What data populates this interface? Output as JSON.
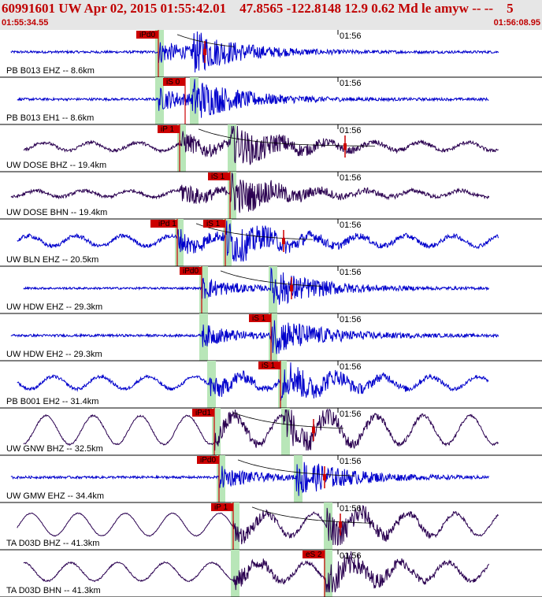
{
  "header": {
    "title": "60991601 UW Apr 02, 2015 01:55:42.01    47.8565 -122.8148 12.9 0.62 Md le amyw -- --    5",
    "start_time": "01:55:34.55",
    "end_time": "01:56:08.95"
  },
  "chart_data": {
    "type": "line",
    "title": "60991601 UW Apr 02, 2015 01:55:42.01    47.8565 -122.8148 12.9 0.62 Md le amyw -- --    5",
    "x_range": [
      "01:55:34.55",
      "01:56:08.95"
    ],
    "x_tick_label": "01:56",
    "x_tick_time": 21.45,
    "total_seconds": 34.4,
    "grid": false,
    "colors": {
      "blue": "#0000cc",
      "purple": "#2a0050",
      "pick": "#cc0000",
      "window": "#b8e6b8"
    },
    "traces": [
      {
        "label": "PB B013 EHZ -- 8.6km",
        "color": "blue",
        "picks": [
          {
            "label": "iPd0",
            "t": 10.05
          }
        ],
        "windows": [
          10.0
        ],
        "p_time": 10.05,
        "s_time": 12.2,
        "noise": 0.06,
        "low_freq": 0,
        "coda": 8,
        "pick_marker_t": 13.0
      },
      {
        "label": "PB B013 EH1 -- 8.6km",
        "color": "blue",
        "picks": [
          {
            "label": "iS 0",
            "t": 11.75
          }
        ],
        "windows": [
          10.0,
          12.2
        ],
        "p_time": 10.05,
        "s_time": 12.2,
        "noise": 0.06,
        "low_freq": 0,
        "coda": 8
      },
      {
        "label": "UW DOSE BHZ -- 19.4km",
        "color": "purple",
        "picks": [
          {
            "label": "iP 1",
            "t": 11.4
          }
        ],
        "windows": [
          11.4,
          14.6
        ],
        "p_time": 11.4,
        "s_time": 14.6,
        "noise": 0.08,
        "low_freq": 0.2,
        "coda": 8,
        "pick_marker_t": 21.9
      },
      {
        "label": "UW DOSE BHN -- 19.4km",
        "color": "purple",
        "picks": [
          {
            "label": "iS 1",
            "t": 14.6
          }
        ],
        "windows": [
          14.6
        ],
        "p_time": 11.4,
        "s_time": 14.6,
        "noise": 0.08,
        "low_freq": 0.15,
        "coda": 8
      },
      {
        "label": "UW BLN EHZ -- 20.5km",
        "color": "blue",
        "picks": [
          {
            "label": "iPd 1",
            "t": 11.25
          },
          {
            "label": "iS 1",
            "t": 14.3
          }
        ],
        "windows": [
          11.25,
          14.3
        ],
        "p_time": 11.25,
        "s_time": 14.3,
        "noise": 0.1,
        "low_freq": 0.25,
        "coda": 8,
        "pick_marker_t": 18.0
      },
      {
        "label": "UW HDW EHZ -- 29.3km",
        "color": "blue",
        "picks": [
          {
            "label": "iPd0",
            "t": 12.8
          }
        ],
        "windows": [
          12.8,
          17.2
        ],
        "p_time": 12.8,
        "s_time": 17.2,
        "noise": 0.05,
        "low_freq": 0,
        "coda": 8,
        "pick_marker_t": 18.5
      },
      {
        "label": "UW HDW EH2 -- 29.3km",
        "color": "blue",
        "picks": [
          {
            "label": "iS 1",
            "t": 17.2
          }
        ],
        "windows": [
          12.8,
          17.2
        ],
        "p_time": 12.8,
        "s_time": 17.2,
        "noise": 0.06,
        "low_freq": 0,
        "coda": 8
      },
      {
        "label": "PB B001 EH2 -- 31.4km",
        "color": "blue",
        "picks": [
          {
            "label": "iS 1",
            "t": 17.8
          }
        ],
        "windows": [
          13.3,
          17.8
        ],
        "p_time": 13.3,
        "s_time": 17.8,
        "noise": 0.08,
        "low_freq": 0.3,
        "coda": 8
      },
      {
        "label": "UW GNW BHZ -- 32.5km",
        "color": "purple",
        "picks": [
          {
            "label": "iPd1",
            "t": 13.6
          }
        ],
        "windows": [
          13.6,
          18.0
        ],
        "p_time": 13.6,
        "s_time": 18.0,
        "noise": 0.04,
        "low_freq": 0.7,
        "coda": 8,
        "pick_marker_t": 19.9
      },
      {
        "label": "UW GMW EHZ -- 34.4km",
        "color": "blue",
        "picks": [
          {
            "label": "iPd0",
            "t": 13.9
          }
        ],
        "windows": [
          13.9,
          18.8
        ],
        "p_time": 13.9,
        "s_time": 18.8,
        "noise": 0.06,
        "low_freq": 0,
        "coda": 8,
        "pick_marker_t": 20.6
      },
      {
        "label": "TA D03D BHZ -- 41.3km",
        "color": "purple",
        "picks": [
          {
            "label": "iP 1",
            "t": 14.8
          }
        ],
        "windows": [
          14.8,
          20.7
        ],
        "p_time": 14.8,
        "s_time": 20.7,
        "noise": 0.02,
        "low_freq": 0.55,
        "coda": 8,
        "pick_marker_t": 21.6
      },
      {
        "label": "TA D03D BHN -- 41.3km",
        "color": "purple",
        "picks": [
          {
            "label": "eS 2",
            "t": 20.6
          }
        ],
        "windows": [
          14.8,
          20.7
        ],
        "p_time": 14.8,
        "s_time": 20.7,
        "noise": 0.04,
        "low_freq": 0.45,
        "coda": 8
      }
    ]
  }
}
